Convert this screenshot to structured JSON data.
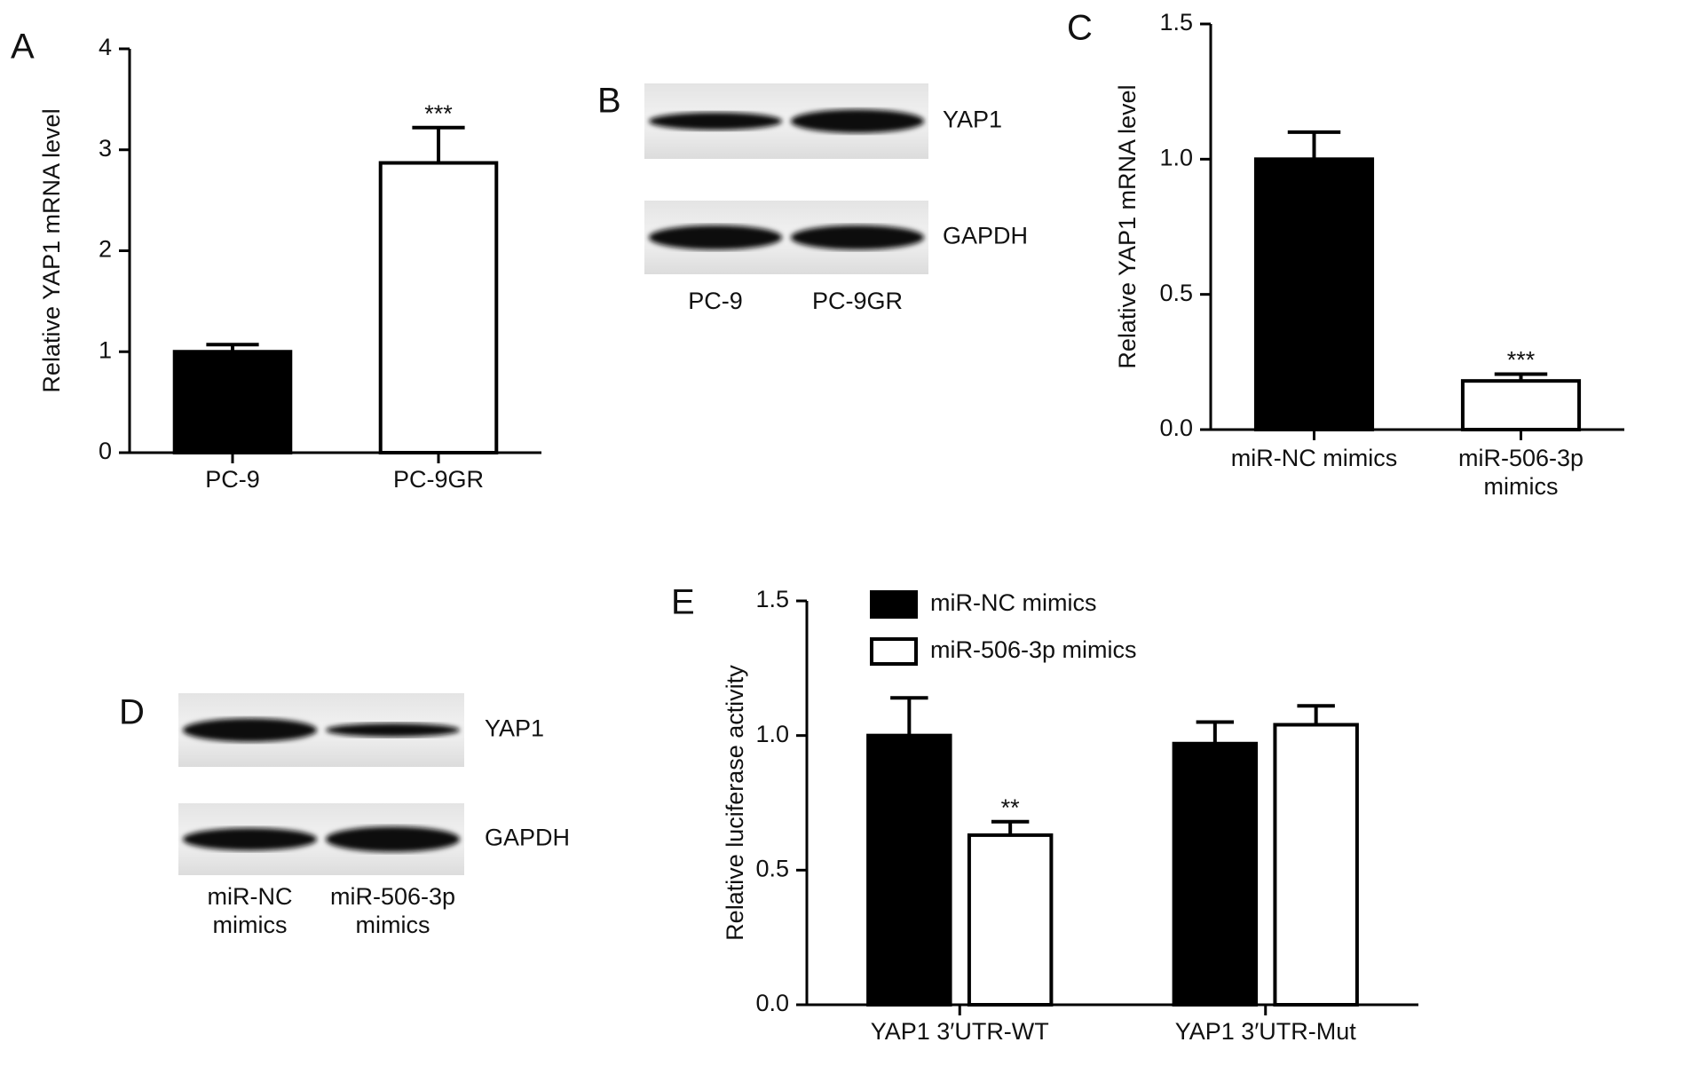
{
  "chart_data": [
    {
      "type": "bar",
      "panel": "A",
      "ylabel": "Relative YAP1 mRNA level",
      "categories": [
        "PC-9",
        "PC-9GR"
      ],
      "values": [
        1.0,
        2.87
      ],
      "errors": [
        0.07,
        0.35
      ],
      "annotations": [
        null,
        "***"
      ],
      "colors": [
        "#000000",
        "#ffffff"
      ],
      "edgecolor": "#000000",
      "ylim": [
        0,
        4
      ],
      "yticks": [
        0,
        1,
        2,
        3,
        4
      ]
    },
    {
      "type": "bar",
      "panel": "C",
      "ylabel": "Relative YAP1 mRNA level",
      "categories": [
        "miR-NC mimics",
        "miR-506-3p mimics"
      ],
      "values": [
        1.0,
        0.18
      ],
      "errors": [
        0.1,
        0.025
      ],
      "annotations": [
        null,
        "***"
      ],
      "colors": [
        "#000000",
        "#ffffff"
      ],
      "edgecolor": "#000000",
      "ylim": [
        0,
        1.5
      ],
      "yticks": [
        {
          "value": 0,
          "label": "0.0"
        },
        {
          "value": 0.5,
          "label": "0.5"
        },
        {
          "value": 1,
          "label": "1.0"
        },
        {
          "value": 1.5,
          "label": "1.5"
        }
      ]
    },
    {
      "type": "bar",
      "panel": "E",
      "ylabel": "Relative luciferase activity",
      "categories": [
        "YAP1 3′UTR-WT",
        "YAP1 3′UTR-Mut"
      ],
      "edgecolor": "#000000",
      "legend": "upper left",
      "series": [
        {
          "name": "miR-NC mimics",
          "color": "#000000",
          "values": [
            1.0,
            0.97
          ],
          "errors": [
            0.14,
            0.08
          ],
          "annotations": [
            null,
            null
          ]
        },
        {
          "name": "miR-506-3p mimics",
          "color": "#ffffff",
          "values": [
            0.63,
            1.04
          ],
          "errors": [
            0.05,
            0.07
          ],
          "annotations": [
            "**",
            null
          ]
        }
      ],
      "ylim": [
        0,
        1.5
      ],
      "yticks": [
        {
          "value": 0,
          "label": "0.0"
        },
        {
          "value": 0.5,
          "label": "0.5"
        },
        {
          "value": 1,
          "label": "1.0"
        },
        {
          "value": 1.5,
          "label": "1.5"
        }
      ]
    }
  ],
  "blots": [
    {
      "panel": "B",
      "bands": [
        "YAP1",
        "GAPDH"
      ],
      "lanes": [
        "PC-9",
        "PC-9GR"
      ]
    },
    {
      "panel": "D",
      "bands": [
        "YAP1",
        "GAPDH"
      ],
      "lanes": [
        "miR-NC mimics",
        "miR-506-3p mimics"
      ]
    }
  ]
}
